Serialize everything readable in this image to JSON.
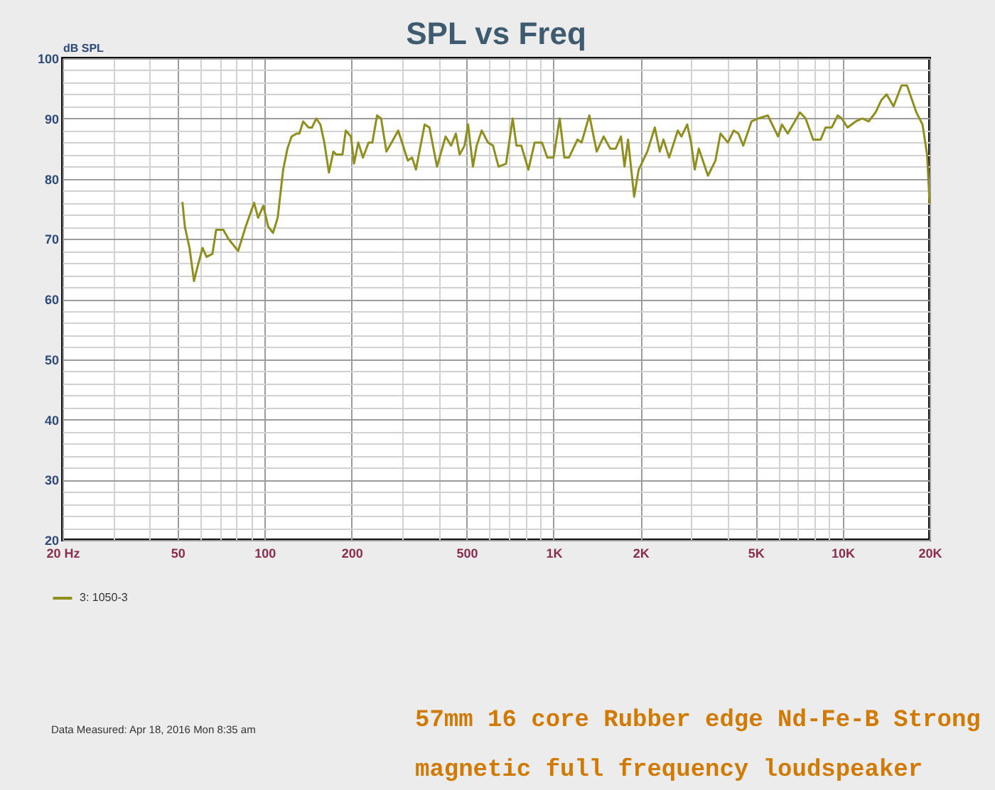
{
  "chart_data": {
    "type": "line",
    "title": "SPL vs Freq",
    "ylabel": "dB SPL",
    "log": "x",
    "x": [
      52,
      53,
      55,
      57,
      58,
      61,
      63,
      66,
      68,
      72,
      75,
      81,
      86,
      92,
      95,
      99,
      103,
      107,
      111,
      116,
      120,
      124,
      129,
      132,
      136,
      142,
      146,
      151,
      156,
      161,
      167,
      173,
      177,
      186,
      191,
      199,
      204,
      211,
      219,
      229,
      236,
      245,
      253,
      264,
      275,
      290,
      313,
      324,
      334,
      358,
      372,
      395,
      423,
      442,
      459,
      473,
      492,
      506,
      526,
      542,
      564,
      593,
      617,
      645,
      685,
      722,
      744,
      773,
      818,
      860,
      912,
      951,
      1000,
      1050,
      1090,
      1130,
      1210,
      1250,
      1330,
      1410,
      1490,
      1570,
      1640,
      1710,
      1760,
      1810,
      1900,
      1970,
      2110,
      2240,
      2330,
      2400,
      2510,
      2690,
      2770,
      2900,
      2990,
      3080,
      3180,
      3420,
      3630,
      3780,
      4010,
      4200,
      4360,
      4530,
      4840,
      5110,
      5510,
      5980,
      6170,
      6460,
      7120,
      7450,
      7910,
      8400,
      8730,
      9170,
      9620,
      9930,
      10400,
      11100,
      11700,
      12300,
      13000,
      13600,
      14200,
      15000,
      16000,
      16700,
      18000,
      18900,
      19600,
      20000
    ],
    "series": [
      {
        "name": "3: 1050-3",
        "color": "#8f8f1f",
        "values": [
          76,
          72,
          68.5,
          63,
          64.5,
          68.5,
          67,
          67.5,
          71.5,
          71.5,
          70,
          68,
          72,
          76,
          73.5,
          75.5,
          72,
          71,
          73.5,
          81.5,
          85,
          87,
          87.5,
          87.5,
          89.5,
          88.5,
          88.5,
          90,
          89,
          86,
          81,
          84.5,
          84,
          84,
          88,
          87,
          82.5,
          86,
          83.5,
          86,
          86,
          90.5,
          90,
          84.5,
          86,
          88,
          83,
          83.5,
          81.5,
          89,
          88.5,
          82,
          87,
          85.5,
          87.5,
          84,
          85.5,
          89,
          82,
          85.5,
          88,
          86,
          85.5,
          82,
          82.5,
          90,
          85.5,
          85.5,
          81.5,
          86,
          86,
          83.5,
          83.5,
          90,
          83.5,
          83.5,
          86.5,
          86,
          90.5,
          84.5,
          87,
          85,
          85,
          87,
          82,
          86.5,
          77,
          81.5,
          84.5,
          88.5,
          84.5,
          86.5,
          83.5,
          88,
          87,
          89,
          86,
          81.5,
          85,
          80.5,
          83,
          87.5,
          86,
          88,
          87.5,
          85.5,
          89.5,
          90,
          90.5,
          87,
          89,
          87.5,
          91,
          90,
          86.5,
          86.5,
          88.5,
          88.5,
          90.5,
          90,
          88.5,
          89.5,
          90,
          89.5,
          91,
          93,
          94,
          92,
          95.5,
          95.5,
          91,
          89,
          84,
          76
        ]
      }
    ],
    "xlim": [
      20,
      20000
    ],
    "xticks": [
      {
        "value": 20,
        "label": "20 Hz"
      },
      {
        "value": 30,
        "label": null
      },
      {
        "value": 40,
        "label": null
      },
      50,
      {
        "value": 60,
        "label": null
      },
      {
        "value": 70,
        "label": null
      },
      {
        "value": 80,
        "label": null
      },
      {
        "value": 90,
        "label": null
      },
      100,
      200,
      {
        "value": 300,
        "label": null
      },
      {
        "value": 400,
        "label": null
      },
      500,
      {
        "value": 600,
        "label": null
      },
      {
        "value": 700,
        "label": null
      },
      {
        "value": 800,
        "label": null
      },
      {
        "value": 900,
        "label": null
      },
      {
        "value": 1000,
        "label": "1K"
      },
      {
        "value": 2000,
        "label": "2K"
      },
      {
        "value": 3000,
        "label": null
      },
      {
        "value": 4000,
        "label": null
      },
      {
        "value": 5000,
        "label": "5K"
      },
      {
        "value": 6000,
        "label": null
      },
      {
        "value": 7000,
        "label": null
      },
      {
        "value": 8000,
        "label": null
      },
      {
        "value": 9000,
        "label": null
      },
      {
        "value": 10000,
        "label": "10K"
      },
      {
        "value": 20000,
        "label": "20K"
      }
    ],
    "ylim": [
      20,
      100
    ],
    "yticks": [
      20,
      {
        "value": 22,
        "label": null
      },
      {
        "value": 24,
        "label": null
      },
      {
        "value": 26,
        "label": null
      },
      {
        "value": 28,
        "label": null
      },
      30,
      {
        "value": 32,
        "label": null
      },
      {
        "value": 34,
        "label": null
      },
      {
        "value": 36,
        "label": null
      },
      {
        "value": 38,
        "label": null
      },
      40,
      {
        "value": 42,
        "label": null
      },
      {
        "value": 44,
        "label": null
      },
      {
        "value": 46,
        "label": null
      },
      {
        "value": 48,
        "label": null
      },
      50,
      {
        "value": 52,
        "label": null
      },
      {
        "value": 54,
        "label": null
      },
      {
        "value": 56,
        "label": null
      },
      {
        "value": 58,
        "label": null
      },
      60,
      {
        "value": 62,
        "label": null
      },
      {
        "value": 64,
        "label": null
      },
      {
        "value": 66,
        "label": null
      },
      {
        "value": 68,
        "label": null
      },
      70,
      {
        "value": 72,
        "label": null
      },
      {
        "value": 74,
        "label": null
      },
      {
        "value": 76,
        "label": null
      },
      {
        "value": 78,
        "label": null
      },
      80,
      {
        "value": 82,
        "label": null
      },
      {
        "value": 84,
        "label": null
      },
      {
        "value": 86,
        "label": null
      },
      {
        "value": 88,
        "label": null
      },
      90,
      {
        "value": 92,
        "label": null
      },
      {
        "value": 94,
        "label": null
      },
      {
        "value": 96,
        "label": null
      },
      {
        "value": 98,
        "label": null
      },
      100
    ],
    "grid": true,
    "legend": "bottom",
    "annotations": [
      "Data Measured: Apr 18, 2016  Mon  8:35 am",
      "57mm 16 core Rubber edge Nd-Fe-B Strong",
      "magnetic full frequency loudspeaker"
    ]
  }
}
